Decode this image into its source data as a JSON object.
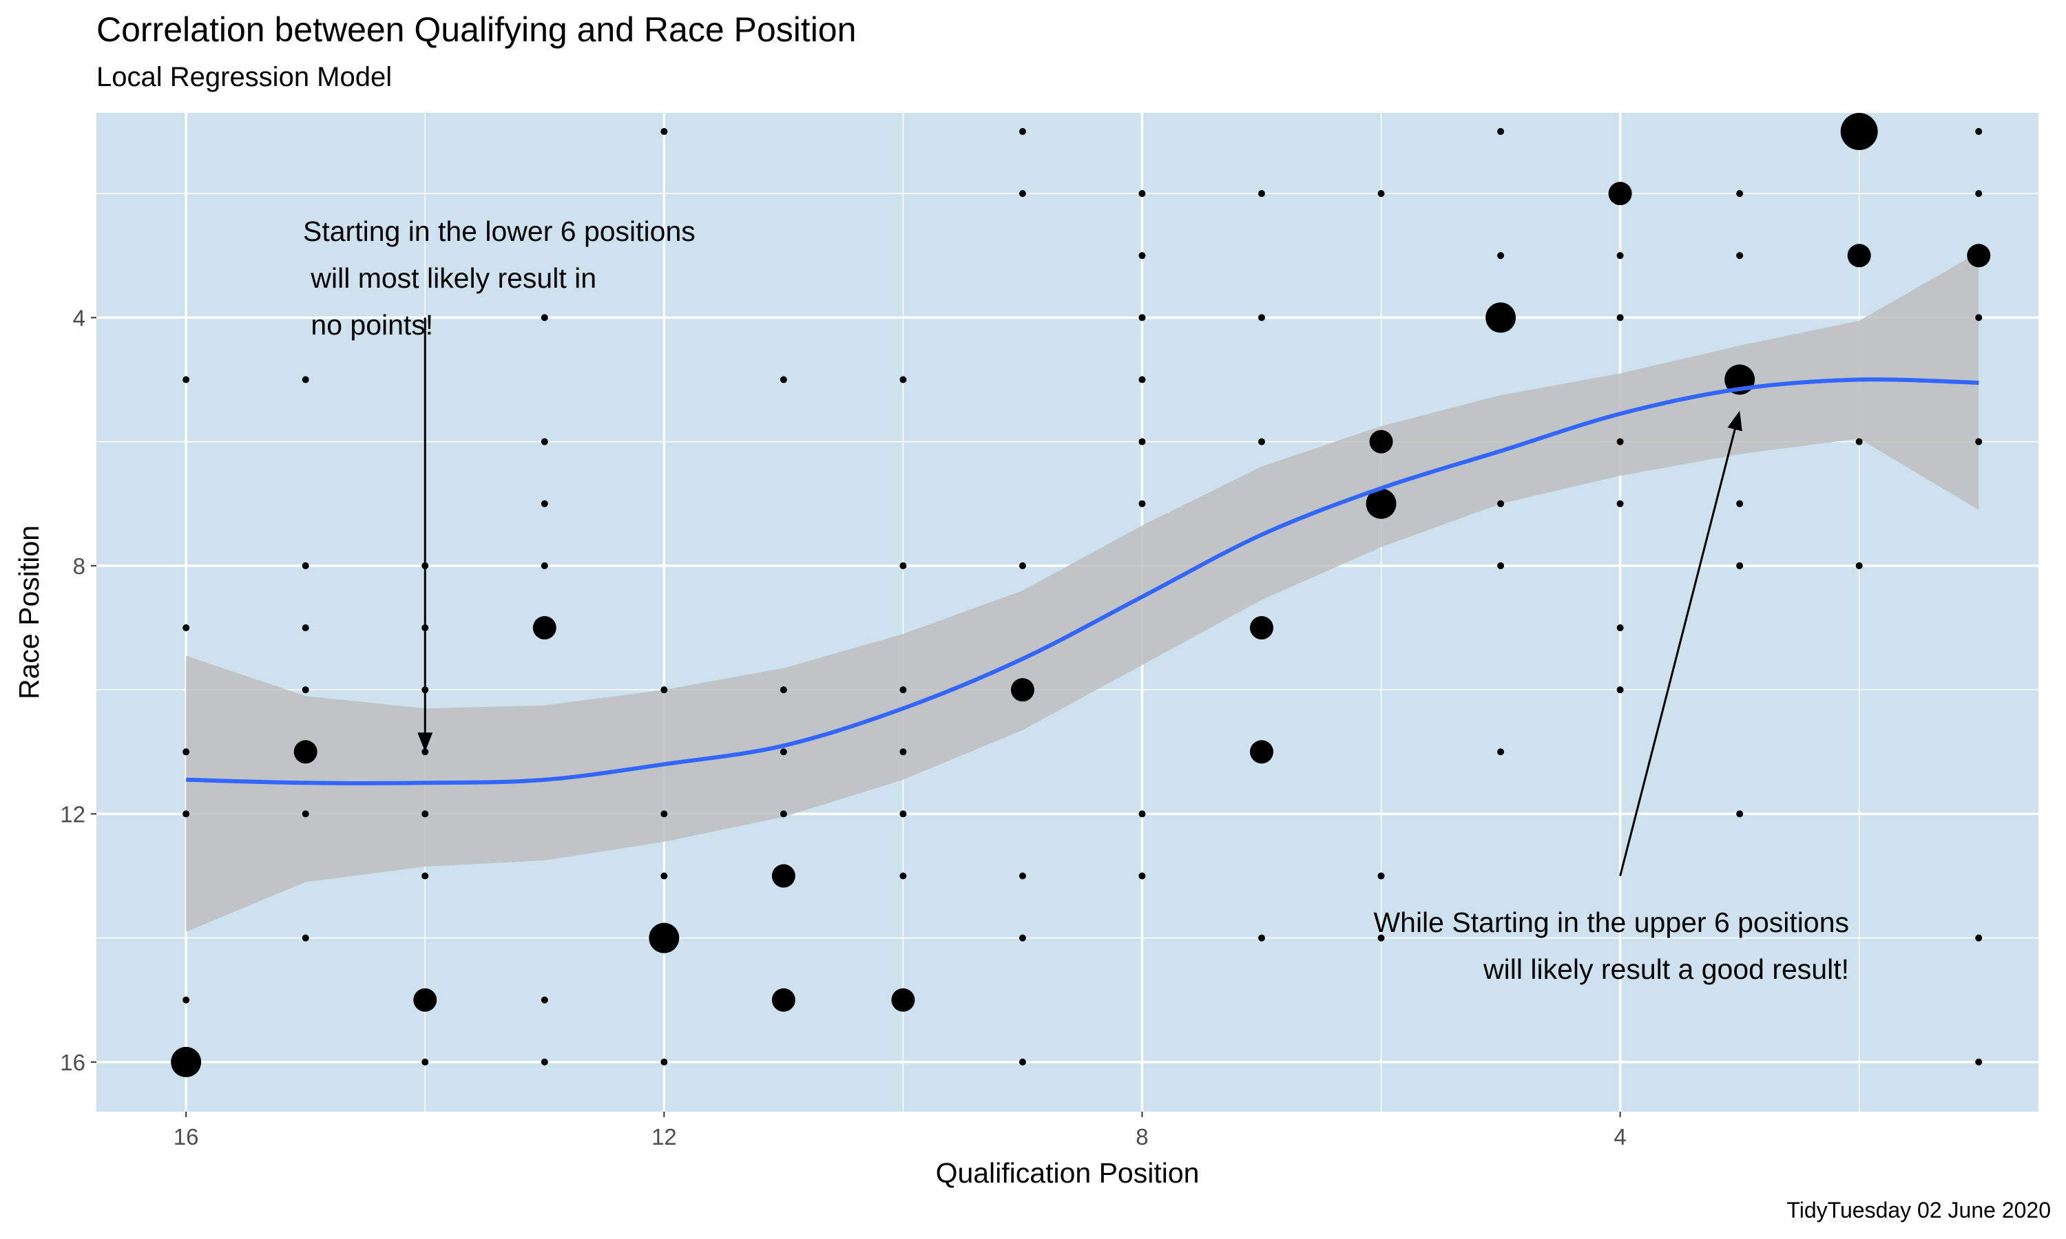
{
  "chart_data": {
    "type": "scatter",
    "title": "Correlation between Qualifying and Race Position",
    "subtitle": "Local Regression Model",
    "caption": "TidyTuesday 02 June 2020",
    "xlabel": "Qualification Position",
    "ylabel": "Race Position",
    "x_reversed": true,
    "y_reversed": true,
    "xlim": [
      16.75,
      0.5
    ],
    "ylim": [
      0.7,
      16.8
    ],
    "x_ticks": [
      16,
      12,
      8,
      4
    ],
    "y_ticks": [
      4,
      8,
      12,
      16
    ],
    "panel_background": "#cde2ee",
    "grid": true,
    "point_color": "#000000",
    "smooth_color": "#3366ff",
    "ribbon_color": "#bebebe",
    "points": [
      {
        "x": 1,
        "y": 1,
        "n": 1
      },
      {
        "x": 1,
        "y": 2,
        "n": 1
      },
      {
        "x": 1,
        "y": 3,
        "n": 2
      },
      {
        "x": 1,
        "y": 4,
        "n": 1
      },
      {
        "x": 1,
        "y": 6,
        "n": 1
      },
      {
        "x": 1,
        "y": 14,
        "n": 1
      },
      {
        "x": 1,
        "y": 16,
        "n": 1
      },
      {
        "x": 2,
        "y": 1,
        "n": 4
      },
      {
        "x": 2,
        "y": 3,
        "n": 2
      },
      {
        "x": 2,
        "y": 6,
        "n": 1
      },
      {
        "x": 2,
        "y": 8,
        "n": 1
      },
      {
        "x": 3,
        "y": 2,
        "n": 1
      },
      {
        "x": 3,
        "y": 3,
        "n": 1
      },
      {
        "x": 3,
        "y": 5,
        "n": 3
      },
      {
        "x": 3,
        "y": 7,
        "n": 1
      },
      {
        "x": 3,
        "y": 8,
        "n": 1
      },
      {
        "x": 3,
        "y": 12,
        "n": 1
      },
      {
        "x": 4,
        "y": 2,
        "n": 2
      },
      {
        "x": 4,
        "y": 3,
        "n": 1
      },
      {
        "x": 4,
        "y": 4,
        "n": 1
      },
      {
        "x": 4,
        "y": 6,
        "n": 1
      },
      {
        "x": 4,
        "y": 7,
        "n": 1
      },
      {
        "x": 4,
        "y": 9,
        "n": 1
      },
      {
        "x": 4,
        "y": 10,
        "n": 1
      },
      {
        "x": 5,
        "y": 1,
        "n": 1
      },
      {
        "x": 5,
        "y": 3,
        "n": 1
      },
      {
        "x": 5,
        "y": 4,
        "n": 3
      },
      {
        "x": 5,
        "y": 7,
        "n": 1
      },
      {
        "x": 5,
        "y": 8,
        "n": 1
      },
      {
        "x": 5,
        "y": 11,
        "n": 1
      },
      {
        "x": 6,
        "y": 2,
        "n": 1
      },
      {
        "x": 6,
        "y": 6,
        "n": 2
      },
      {
        "x": 6,
        "y": 7,
        "n": 3
      },
      {
        "x": 6,
        "y": 13,
        "n": 1
      },
      {
        "x": 6,
        "y": 14,
        "n": 1
      },
      {
        "x": 7,
        "y": 2,
        "n": 1
      },
      {
        "x": 7,
        "y": 4,
        "n": 1
      },
      {
        "x": 7,
        "y": 6,
        "n": 1
      },
      {
        "x": 7,
        "y": 9,
        "n": 2
      },
      {
        "x": 7,
        "y": 11,
        "n": 2
      },
      {
        "x": 7,
        "y": 14,
        "n": 1
      },
      {
        "x": 8,
        "y": 2,
        "n": 1
      },
      {
        "x": 8,
        "y": 3,
        "n": 1
      },
      {
        "x": 8,
        "y": 4,
        "n": 1
      },
      {
        "x": 8,
        "y": 5,
        "n": 1
      },
      {
        "x": 8,
        "y": 6,
        "n": 1
      },
      {
        "x": 8,
        "y": 7,
        "n": 1
      },
      {
        "x": 8,
        "y": 12,
        "n": 1
      },
      {
        "x": 8,
        "y": 13,
        "n": 1
      },
      {
        "x": 9,
        "y": 1,
        "n": 1
      },
      {
        "x": 9,
        "y": 2,
        "n": 1
      },
      {
        "x": 9,
        "y": 8,
        "n": 1
      },
      {
        "x": 9,
        "y": 10,
        "n": 2
      },
      {
        "x": 9,
        "y": 13,
        "n": 1
      },
      {
        "x": 9,
        "y": 14,
        "n": 1
      },
      {
        "x": 9,
        "y": 16,
        "n": 1
      },
      {
        "x": 10,
        "y": 5,
        "n": 1
      },
      {
        "x": 10,
        "y": 8,
        "n": 1
      },
      {
        "x": 10,
        "y": 10,
        "n": 1
      },
      {
        "x": 10,
        "y": 11,
        "n": 1
      },
      {
        "x": 10,
        "y": 12,
        "n": 1
      },
      {
        "x": 10,
        "y": 13,
        "n": 1
      },
      {
        "x": 10,
        "y": 15,
        "n": 2
      },
      {
        "x": 11,
        "y": 5,
        "n": 1
      },
      {
        "x": 11,
        "y": 10,
        "n": 1
      },
      {
        "x": 11,
        "y": 11,
        "n": 1
      },
      {
        "x": 11,
        "y": 12,
        "n": 1
      },
      {
        "x": 11,
        "y": 13,
        "n": 2
      },
      {
        "x": 11,
        "y": 15,
        "n": 2
      },
      {
        "x": 12,
        "y": 1,
        "n": 1
      },
      {
        "x": 12,
        "y": 10,
        "n": 1
      },
      {
        "x": 12,
        "y": 12,
        "n": 1
      },
      {
        "x": 12,
        "y": 13,
        "n": 1
      },
      {
        "x": 12,
        "y": 14,
        "n": 3
      },
      {
        "x": 12,
        "y": 16,
        "n": 1
      },
      {
        "x": 13,
        "y": 4,
        "n": 1
      },
      {
        "x": 13,
        "y": 6,
        "n": 1
      },
      {
        "x": 13,
        "y": 7,
        "n": 1
      },
      {
        "x": 13,
        "y": 8,
        "n": 1
      },
      {
        "x": 13,
        "y": 9,
        "n": 2
      },
      {
        "x": 13,
        "y": 15,
        "n": 1
      },
      {
        "x": 13,
        "y": 16,
        "n": 1
      },
      {
        "x": 14,
        "y": 8,
        "n": 1
      },
      {
        "x": 14,
        "y": 9,
        "n": 1
      },
      {
        "x": 14,
        "y": 10,
        "n": 1
      },
      {
        "x": 14,
        "y": 11,
        "n": 1
      },
      {
        "x": 14,
        "y": 12,
        "n": 1
      },
      {
        "x": 14,
        "y": 13,
        "n": 1
      },
      {
        "x": 14,
        "y": 15,
        "n": 2
      },
      {
        "x": 14,
        "y": 16,
        "n": 1
      },
      {
        "x": 15,
        "y": 5,
        "n": 1
      },
      {
        "x": 15,
        "y": 8,
        "n": 1
      },
      {
        "x": 15,
        "y": 9,
        "n": 1
      },
      {
        "x": 15,
        "y": 10,
        "n": 1
      },
      {
        "x": 15,
        "y": 11,
        "n": 2
      },
      {
        "x": 15,
        "y": 12,
        "n": 1
      },
      {
        "x": 15,
        "y": 14,
        "n": 1
      },
      {
        "x": 16,
        "y": 5,
        "n": 1
      },
      {
        "x": 16,
        "y": 9,
        "n": 1
      },
      {
        "x": 16,
        "y": 11,
        "n": 1
      },
      {
        "x": 16,
        "y": 12,
        "n": 1
      },
      {
        "x": 16,
        "y": 15,
        "n": 1
      },
      {
        "x": 16,
        "y": 16,
        "n": 3
      }
    ],
    "smooth": [
      {
        "x": 16,
        "y": 11.45,
        "lo": 9.45,
        "hi": 13.9
      },
      {
        "x": 15,
        "y": 11.5,
        "lo": 10.1,
        "hi": 13.1
      },
      {
        "x": 14,
        "y": 11.5,
        "lo": 10.3,
        "hi": 12.85
      },
      {
        "x": 13,
        "y": 11.45,
        "lo": 10.25,
        "hi": 12.75
      },
      {
        "x": 12,
        "y": 11.2,
        "lo": 10.0,
        "hi": 12.45
      },
      {
        "x": 11,
        "y": 10.9,
        "lo": 9.65,
        "hi": 12.05
      },
      {
        "x": 10,
        "y": 10.3,
        "lo": 9.1,
        "hi": 11.45
      },
      {
        "x": 9,
        "y": 9.5,
        "lo": 8.4,
        "hi": 10.65
      },
      {
        "x": 8,
        "y": 8.5,
        "lo": 7.35,
        "hi": 9.6
      },
      {
        "x": 7,
        "y": 7.5,
        "lo": 6.4,
        "hi": 8.55
      },
      {
        "x": 6,
        "y": 6.75,
        "lo": 5.75,
        "hi": 7.7
      },
      {
        "x": 5,
        "y": 6.15,
        "lo": 5.25,
        "hi": 7.0
      },
      {
        "x": 4,
        "y": 5.55,
        "lo": 4.9,
        "hi": 6.55
      },
      {
        "x": 3,
        "y": 5.15,
        "lo": 4.45,
        "hi": 6.2
      },
      {
        "x": 2,
        "y": 5.0,
        "lo": 4.05,
        "hi": 5.95
      },
      {
        "x": 1,
        "y": 5.05,
        "lo": 2.95,
        "hi": 7.1
      }
    ],
    "annotations": [
      {
        "text": "Starting in the lower 6 positions\n will most likely result in\n no points!",
        "arrow_from": [
          14,
          4
        ],
        "arrow_to": [
          14,
          11
        ]
      },
      {
        "text": "While Starting in the upper 6 positions\nwill likely result a good result!",
        "arrow_from": [
          4,
          13
        ],
        "arrow_to": [
          3,
          5.5
        ]
      }
    ]
  }
}
